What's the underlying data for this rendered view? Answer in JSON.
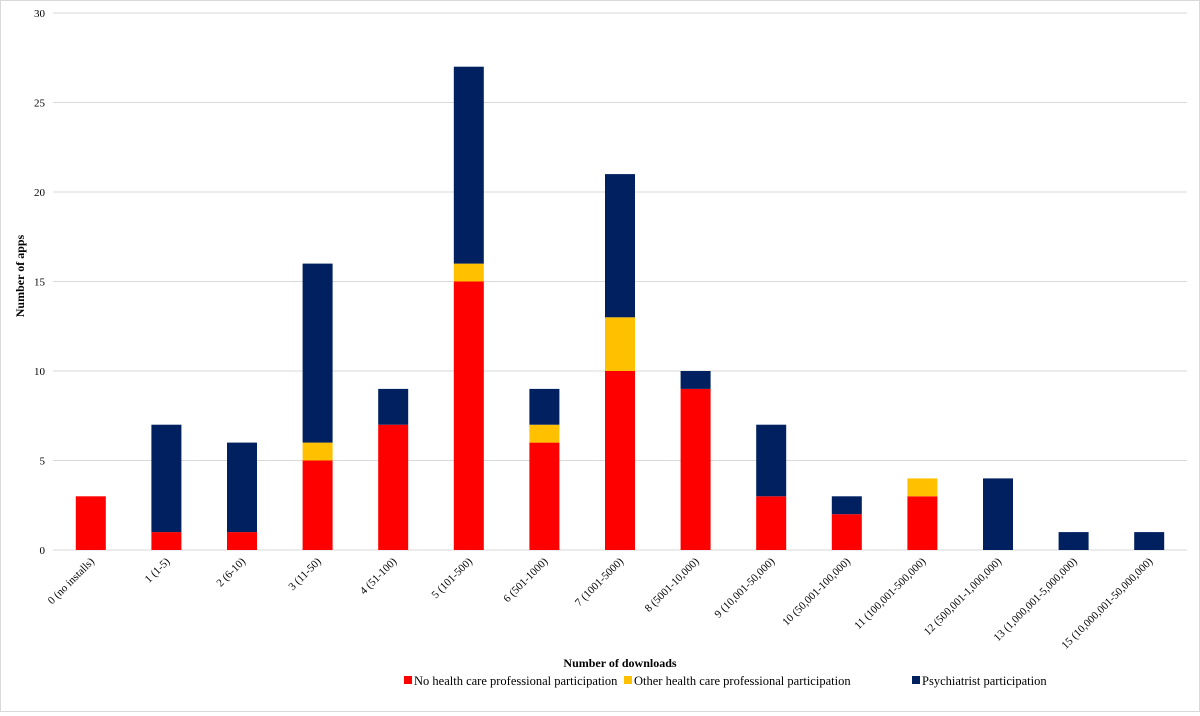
{
  "chart_data": {
    "type": "bar",
    "stacked": true,
    "xlabel": "Number of downloads",
    "ylabel": "Number of apps",
    "ylim": [
      0,
      30
    ],
    "yticks": [
      0,
      5,
      10,
      15,
      20,
      25,
      30
    ],
    "grid": true,
    "legend_position": "bottom",
    "categories": [
      "0 (no installs)",
      "1 (1-5)",
      "2 (6-10)",
      "3 (11-50)",
      "4 (51-100)",
      "5 (101-500)",
      "6 (501-1000)",
      "7 (1001-5000)",
      "8 (5001-10,000)",
      "9 (10,001-50,000)",
      "10 (50,001-100,000)",
      "11 (100,001-500,000)",
      "12 (500,001-1,000,000)",
      "13 (1,000,001-5,000,000)",
      "15 (10,000,001-50,000,000)"
    ],
    "series": [
      {
        "name": "No health care professional participation",
        "color": "#ff0000",
        "values": [
          3,
          1,
          1,
          5,
          7,
          15,
          6,
          10,
          9,
          3,
          2,
          3,
          0,
          0,
          0
        ]
      },
      {
        "name": "Other health care professional participation",
        "color": "#ffc000",
        "values": [
          0,
          0,
          0,
          1,
          0,
          1,
          1,
          3,
          0,
          0,
          0,
          1,
          0,
          0,
          0
        ]
      },
      {
        "name": "Psychiatrist participation",
        "color": "#002060",
        "values": [
          0,
          6,
          5,
          10,
          2,
          11,
          2,
          8,
          1,
          4,
          1,
          0,
          4,
          1,
          1
        ]
      }
    ]
  }
}
